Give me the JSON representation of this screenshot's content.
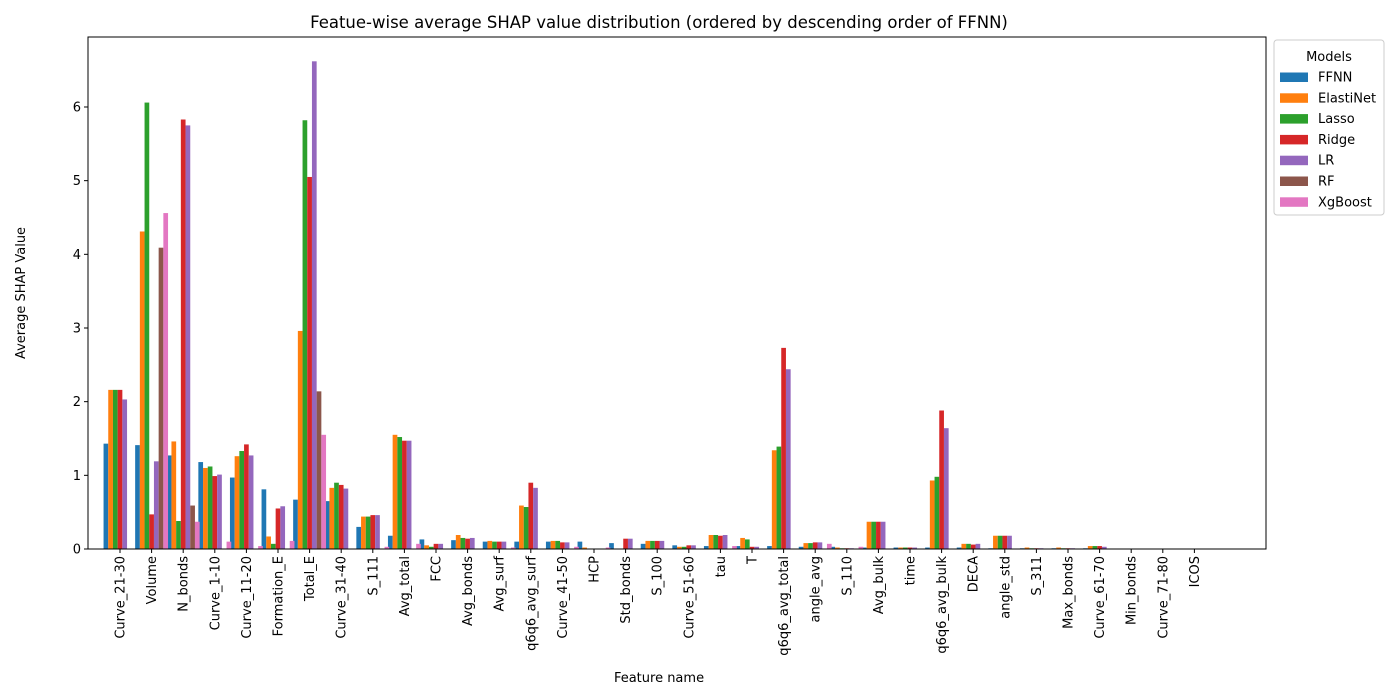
{
  "chart_data": {
    "type": "bar",
    "title": "Featue-wise average SHAP value distribution (ordered by descending order of FFNN)",
    "xlabel": "Feature name",
    "ylabel": "Average SHAP Value",
    "ylim": [
      0,
      6.95
    ],
    "yticks": [
      0,
      1,
      2,
      3,
      4,
      5,
      6
    ],
    "grid": false,
    "legend": {
      "title": "Models",
      "placement": "outside-top-right"
    },
    "categories": [
      "Curve_21-30",
      "Volume",
      "N_bonds",
      "Curve_1-10",
      "Curve_11-20",
      "Formation_E",
      "Total_E",
      "Curve_31-40",
      "S_111",
      "Avg_total",
      "FCC",
      "Avg_bonds",
      "Avg_surf",
      "q6q6_avg_surf",
      "Curve_41-50",
      "HCP",
      "Std_bonds",
      "S_100",
      "Curve_51-60",
      "tau",
      "T",
      "q6q6_avg_total",
      "angle_avg",
      "S_110",
      "Avg_bulk",
      "time",
      "q6q6_avg_bulk",
      "DECA",
      "angle_std",
      "S_311",
      "Max_bonds",
      "Curve_61-70",
      "Min_bonds",
      "Curve_71-80",
      "ICOS"
    ],
    "series": [
      {
        "name": "FFNN",
        "color": "#1f77b4",
        "values": [
          1.43,
          1.41,
          1.27,
          1.18,
          0.97,
          0.81,
          0.67,
          0.65,
          0.3,
          0.18,
          0.13,
          0.12,
          0.1,
          0.1,
          0.1,
          0.1,
          0.08,
          0.07,
          0.05,
          0.04,
          0.04,
          0.04,
          0.03,
          0.03,
          0.02,
          0.02,
          0.02,
          0.02,
          0.01,
          0.01,
          0.01,
          0.01,
          0.0,
          0.0,
          0.0
        ]
      },
      {
        "name": "ElastiNet",
        "color": "#ff7f0e",
        "values": [
          2.16,
          4.31,
          1.46,
          1.1,
          1.26,
          0.17,
          2.96,
          0.83,
          0.44,
          1.55,
          0.05,
          0.19,
          0.11,
          0.59,
          0.11,
          0.02,
          0.0,
          0.11,
          0.03,
          0.19,
          0.15,
          1.34,
          0.08,
          0.02,
          0.37,
          0.02,
          0.93,
          0.07,
          0.18,
          0.02,
          0.02,
          0.04,
          0.0,
          0.0,
          0.0
        ]
      },
      {
        "name": "Lasso",
        "color": "#2ca02c",
        "values": [
          2.16,
          6.06,
          0.38,
          1.12,
          1.33,
          0.07,
          5.82,
          0.9,
          0.44,
          1.52,
          0.03,
          0.15,
          0.1,
          0.57,
          0.11,
          0.0,
          0.0,
          0.11,
          0.03,
          0.19,
          0.13,
          1.39,
          0.08,
          0.01,
          0.37,
          0.02,
          0.98,
          0.07,
          0.18,
          0.01,
          0.01,
          0.04,
          0.0,
          0.0,
          0.0
        ]
      },
      {
        "name": "Ridge",
        "color": "#d62728",
        "values": [
          2.16,
          0.47,
          5.83,
          0.99,
          1.42,
          0.55,
          5.05,
          0.87,
          0.46,
          1.47,
          0.07,
          0.14,
          0.1,
          0.9,
          0.09,
          0.0,
          0.14,
          0.11,
          0.05,
          0.18,
          0.03,
          2.73,
          0.09,
          0.01,
          0.37,
          0.02,
          1.88,
          0.06,
          0.18,
          0.01,
          0.01,
          0.04,
          0.0,
          0.0,
          0.0
        ]
      },
      {
        "name": "LR",
        "color": "#9467bd",
        "values": [
          2.03,
          1.19,
          5.75,
          1.01,
          1.27,
          0.58,
          6.62,
          0.82,
          0.46,
          1.47,
          0.07,
          0.15,
          0.1,
          0.83,
          0.09,
          0.0,
          0.14,
          0.11,
          0.05,
          0.19,
          0.03,
          2.44,
          0.09,
          0.01,
          0.37,
          0.02,
          1.64,
          0.07,
          0.18,
          0.01,
          0.01,
          0.03,
          0.0,
          0.0,
          0.0
        ]
      },
      {
        "name": "RF",
        "color": "#8c564b",
        "values": [
          0.0,
          4.09,
          0.59,
          0.0,
          0.0,
          0.0,
          2.14,
          0.0,
          0.0,
          0.0,
          0.0,
          0.0,
          0.0,
          0.0,
          0.0,
          0.0,
          0.0,
          0.0,
          0.0,
          0.0,
          0.0,
          0.0,
          0.0,
          0.0,
          0.0,
          0.0,
          0.0,
          0.0,
          0.0,
          0.0,
          0.0,
          0.0,
          0.0,
          0.0,
          0.0
        ]
      },
      {
        "name": "XgBoost",
        "color": "#e377c2",
        "values": [
          0.0,
          4.56,
          0.37,
          0.1,
          0.04,
          0.11,
          1.55,
          0.0,
          0.03,
          0.07,
          0.0,
          0.0,
          0.02,
          0.0,
          0.03,
          0.02,
          0.0,
          0.0,
          0.0,
          0.04,
          0.0,
          0.0,
          0.07,
          0.03,
          0.0,
          0.0,
          0.0,
          0.0,
          0.0,
          0.0,
          0.0,
          0.0,
          0.0,
          0.0,
          0.0
        ]
      }
    ]
  }
}
